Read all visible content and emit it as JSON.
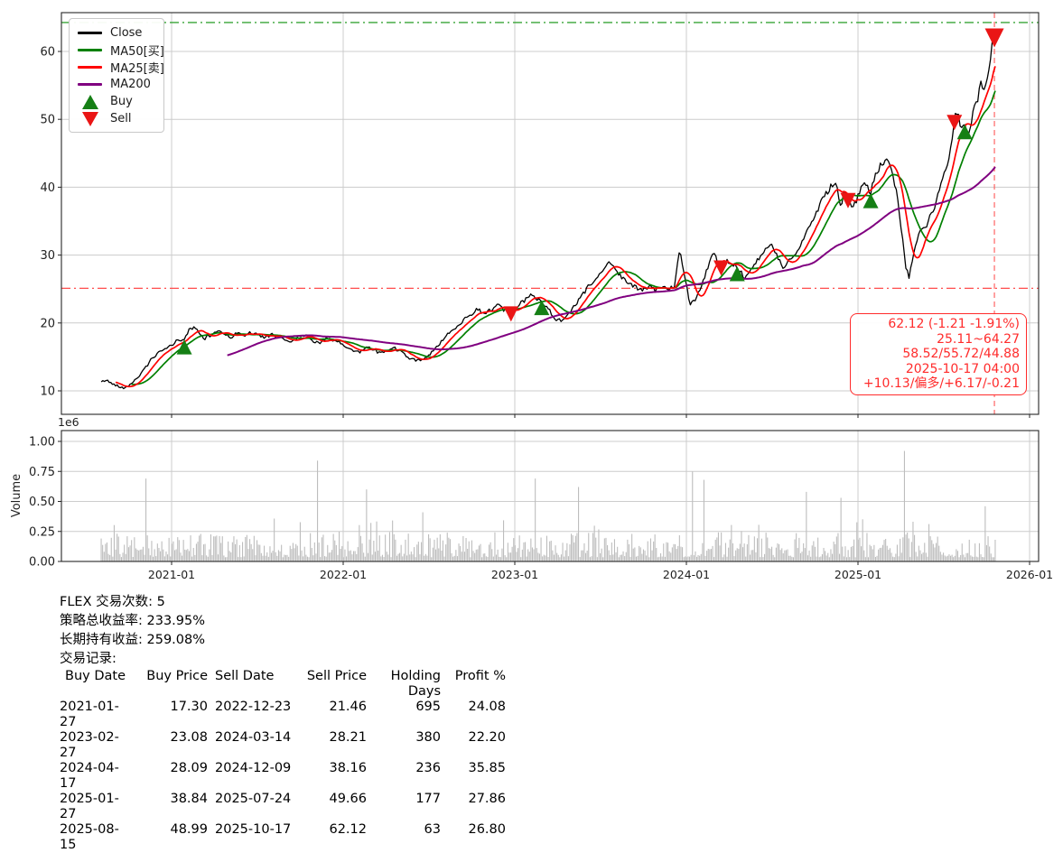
{
  "legend": {
    "items": [
      {
        "label": "Close",
        "type": "line",
        "color": "#000000"
      },
      {
        "label": "MA50[买]",
        "type": "line",
        "color": "#008000"
      },
      {
        "label": "MA25[卖]",
        "type": "line",
        "color": "#ff0000"
      },
      {
        "label": "MA200",
        "type": "line",
        "color": "#800080"
      },
      {
        "label": "Buy",
        "type": "triangle-up",
        "color": "#157f15"
      },
      {
        "label": "Sell",
        "type": "triangle-down",
        "color": "#ea1515"
      }
    ]
  },
  "annotation": {
    "color": "#ff2b2b",
    "lines": [
      "62.12 (-1.21 -1.91%)",
      "25.11~64.27",
      "58.52/55.72/44.88",
      "2025-10-17 04:00",
      "+10.13/偏多/+6.17/-0.21"
    ]
  },
  "axes": {
    "x_ticks": [
      "2021-01",
      "2022-01",
      "2023-01",
      "2024-01",
      "2025-01",
      "2026-01"
    ],
    "x_tick_years": [
      2021,
      2022,
      2023,
      2024,
      2025,
      2026
    ],
    "price_y_ticks": [
      10,
      20,
      30,
      40,
      50,
      60
    ],
    "volume_y_ticks": [
      "0.00",
      "0.25",
      "0.50",
      "0.75",
      "1.00"
    ],
    "volume_y_values": [
      0,
      0.25,
      0.5,
      0.75,
      1.0
    ],
    "volume_offset_label": "1e6",
    "volume_axis_label": "Volume"
  },
  "chart_data": {
    "type": "line",
    "x_unit": "decimal_year",
    "x_range": [
      2020.59,
      2025.8
    ],
    "price_ylim": [
      6.5,
      65.7
    ],
    "grid": true,
    "legend_position": "upper-left",
    "reference_lines": {
      "period_high": 64.27,
      "period_low": 25.11,
      "last_vline_t": 2025.795
    },
    "close_color": "#000000",
    "ma25_color": "#ff0000",
    "ma50_color": "#008000",
    "ma200_color": "#800080",
    "close_waypoints": [
      [
        2020.59,
        11.3
      ],
      [
        2020.62,
        11.6
      ],
      [
        2020.65,
        11.1
      ],
      [
        2020.68,
        10.8
      ],
      [
        2020.71,
        10.5
      ],
      [
        2020.73,
        10.4
      ],
      [
        2020.76,
        11.0
      ],
      [
        2020.8,
        11.9
      ],
      [
        2020.84,
        13.1
      ],
      [
        2020.88,
        14.6
      ],
      [
        2020.92,
        15.5
      ],
      [
        2020.96,
        16.1
      ],
      [
        2021.0,
        16.7
      ],
      [
        2021.04,
        17.6
      ],
      [
        2021.07,
        17.4
      ],
      [
        2021.1,
        18.9
      ],
      [
        2021.13,
        19.4
      ],
      [
        2021.16,
        18.5
      ],
      [
        2021.19,
        17.7
      ],
      [
        2021.23,
        18.2
      ],
      [
        2021.27,
        18.9
      ],
      [
        2021.31,
        18.4
      ],
      [
        2021.35,
        17.9
      ],
      [
        2021.38,
        18.5
      ],
      [
        2021.42,
        18.1
      ],
      [
        2021.46,
        18.6
      ],
      [
        2021.5,
        18.2
      ],
      [
        2021.54,
        17.8
      ],
      [
        2021.58,
        18.3
      ],
      [
        2021.62,
        18.0
      ],
      [
        2021.66,
        17.5
      ],
      [
        2021.7,
        17.3
      ],
      [
        2021.74,
        17.9
      ],
      [
        2021.78,
        18.2
      ],
      [
        2021.82,
        17.4
      ],
      [
        2021.86,
        17.1
      ],
      [
        2021.9,
        17.7
      ],
      [
        2021.94,
        17.4
      ],
      [
        2021.98,
        17.1
      ],
      [
        2022.02,
        16.4
      ],
      [
        2022.06,
        15.9
      ],
      [
        2022.1,
        15.7
      ],
      [
        2022.14,
        16.5
      ],
      [
        2022.18,
        16.1
      ],
      [
        2022.22,
        15.5
      ],
      [
        2022.26,
        16.0
      ],
      [
        2022.3,
        16.3
      ],
      [
        2022.34,
        15.7
      ],
      [
        2022.38,
        14.9
      ],
      [
        2022.42,
        14.5
      ],
      [
        2022.46,
        14.6
      ],
      [
        2022.5,
        15.3
      ],
      [
        2022.54,
        16.4
      ],
      [
        2022.58,
        17.4
      ],
      [
        2022.62,
        18.6
      ],
      [
        2022.66,
        19.5
      ],
      [
        2022.7,
        20.4
      ],
      [
        2022.74,
        21.2
      ],
      [
        2022.78,
        22.1
      ],
      [
        2022.82,
        21.4
      ],
      [
        2022.86,
        22.0
      ],
      [
        2022.9,
        22.6
      ],
      [
        2022.94,
        21.8
      ],
      [
        2022.98,
        21.5
      ],
      [
        2023.02,
        22.6
      ],
      [
        2023.06,
        23.4
      ],
      [
        2023.1,
        24.2
      ],
      [
        2023.13,
        23.6
      ],
      [
        2023.16,
        23.1
      ],
      [
        2023.2,
        21.9
      ],
      [
        2023.24,
        20.6
      ],
      [
        2023.28,
        20.3
      ],
      [
        2023.32,
        21.6
      ],
      [
        2023.36,
        22.8
      ],
      [
        2023.4,
        24.3
      ],
      [
        2023.44,
        25.6
      ],
      [
        2023.48,
        26.8
      ],
      [
        2023.52,
        27.9
      ],
      [
        2023.55,
        28.8
      ],
      [
        2023.58,
        28.2
      ],
      [
        2023.62,
        26.9
      ],
      [
        2023.66,
        25.9
      ],
      [
        2023.7,
        25.3
      ],
      [
        2023.74,
        24.7
      ],
      [
        2023.78,
        25.4
      ],
      [
        2023.82,
        24.8
      ],
      [
        2023.86,
        25.3
      ],
      [
        2023.9,
        24.8
      ],
      [
        2023.93,
        25.6
      ],
      [
        2023.96,
        30.8
      ],
      [
        2023.99,
        27.0
      ],
      [
        2024.02,
        22.9
      ],
      [
        2024.05,
        23.4
      ],
      [
        2024.09,
        25.8
      ],
      [
        2024.13,
        28.6
      ],
      [
        2024.16,
        30.2
      ],
      [
        2024.2,
        28.2
      ],
      [
        2024.24,
        29.3
      ],
      [
        2024.28,
        28.4
      ],
      [
        2024.3,
        28.1
      ],
      [
        2024.34,
        26.6
      ],
      [
        2024.38,
        27.8
      ],
      [
        2024.42,
        29.4
      ],
      [
        2024.46,
        30.8
      ],
      [
        2024.5,
        31.4
      ],
      [
        2024.53,
        29.6
      ],
      [
        2024.57,
        27.9
      ],
      [
        2024.6,
        29.1
      ],
      [
        2024.64,
        30.6
      ],
      [
        2024.68,
        32.3
      ],
      [
        2024.72,
        34.3
      ],
      [
        2024.76,
        36.4
      ],
      [
        2024.8,
        38.4
      ],
      [
        2024.84,
        40.2
      ],
      [
        2024.87,
        40.6
      ],
      [
        2024.9,
        37.2
      ],
      [
        2024.92,
        39.6
      ],
      [
        2024.94,
        38.2
      ],
      [
        2024.97,
        36.6
      ],
      [
        2025.0,
        38.8
      ],
      [
        2025.04,
        40.9
      ],
      [
        2025.07,
        38.8
      ],
      [
        2025.1,
        41.8
      ],
      [
        2025.14,
        43.4
      ],
      [
        2025.17,
        44.4
      ],
      [
        2025.2,
        42.0
      ],
      [
        2025.23,
        38.5
      ],
      [
        2025.26,
        32.5
      ],
      [
        2025.28,
        27.8
      ],
      [
        2025.3,
        26.8
      ],
      [
        2025.32,
        30.0
      ],
      [
        2025.35,
        32.8
      ],
      [
        2025.38,
        33.8
      ],
      [
        2025.41,
        34.9
      ],
      [
        2025.44,
        36.8
      ],
      [
        2025.47,
        38.9
      ],
      [
        2025.5,
        41.5
      ],
      [
        2025.53,
        44.5
      ],
      [
        2025.56,
        49.7
      ],
      [
        2025.58,
        51.2
      ],
      [
        2025.6,
        48.6
      ],
      [
        2025.62,
        49.0
      ],
      [
        2025.64,
        47.6
      ],
      [
        2025.67,
        50.8
      ],
      [
        2025.7,
        53.2
      ],
      [
        2025.72,
        55.6
      ],
      [
        2025.74,
        54.2
      ],
      [
        2025.76,
        57.6
      ],
      [
        2025.78,
        60.3
      ],
      [
        2025.79,
        63.0
      ],
      [
        2025.8,
        62.12
      ]
    ],
    "ma_windows_samples": {
      "ma25": 10,
      "ma50": 20,
      "ma200": 80
    },
    "buy_points": [
      [
        2021.074,
        17.3
      ],
      [
        2023.157,
        23.08
      ],
      [
        2024.296,
        28.09
      ],
      [
        2025.074,
        38.84
      ],
      [
        2025.622,
        48.99
      ]
    ],
    "sell_points": [
      [
        2022.978,
        21.46
      ],
      [
        2024.203,
        28.21
      ],
      [
        2024.942,
        38.16
      ],
      [
        2025.562,
        49.66
      ],
      [
        2025.795,
        62.12
      ]
    ],
    "volume": {
      "units": "1e6",
      "ylim": [
        0,
        1.05
      ],
      "baseline_range": [
        0.03,
        0.3
      ],
      "spikes": [
        [
          2020.853,
          0.69
        ],
        [
          2021.853,
          0.84
        ],
        [
          2022.132,
          0.6
        ],
        [
          2022.468,
          0.41
        ],
        [
          2023.121,
          0.69
        ],
        [
          2023.374,
          0.62
        ],
        [
          2024.037,
          0.75
        ],
        [
          2024.1,
          0.68
        ],
        [
          2024.695,
          0.58
        ],
        [
          2024.9,
          0.53
        ],
        [
          2025.268,
          0.92
        ],
        [
          2025.737,
          0.46
        ]
      ]
    }
  },
  "stats": {
    "lines": [
      "FLEX 交易次数: 5",
      "策略总收益率: 233.95%",
      "长期持有收益: 259.08%",
      "交易记录:"
    ]
  },
  "trades": {
    "columns": [
      "Buy Date",
      "Buy Price",
      "Sell Date",
      "Sell Price",
      "Holding Days",
      "Profit %"
    ],
    "rows": [
      [
        "2021-01-27",
        "17.30",
        "2022-12-23",
        "21.46",
        "695",
        "24.08"
      ],
      [
        "2023-02-27",
        "23.08",
        "2024-03-14",
        "28.21",
        "380",
        "22.20"
      ],
      [
        "2024-04-17",
        "28.09",
        "2024-12-09",
        "38.16",
        "236",
        "35.85"
      ],
      [
        "2025-01-27",
        "38.84",
        "2025-07-24",
        "49.66",
        "177",
        "27.86"
      ],
      [
        "2025-08-15",
        "48.99",
        "2025-10-17",
        "62.12",
        "63",
        "26.80"
      ]
    ]
  }
}
